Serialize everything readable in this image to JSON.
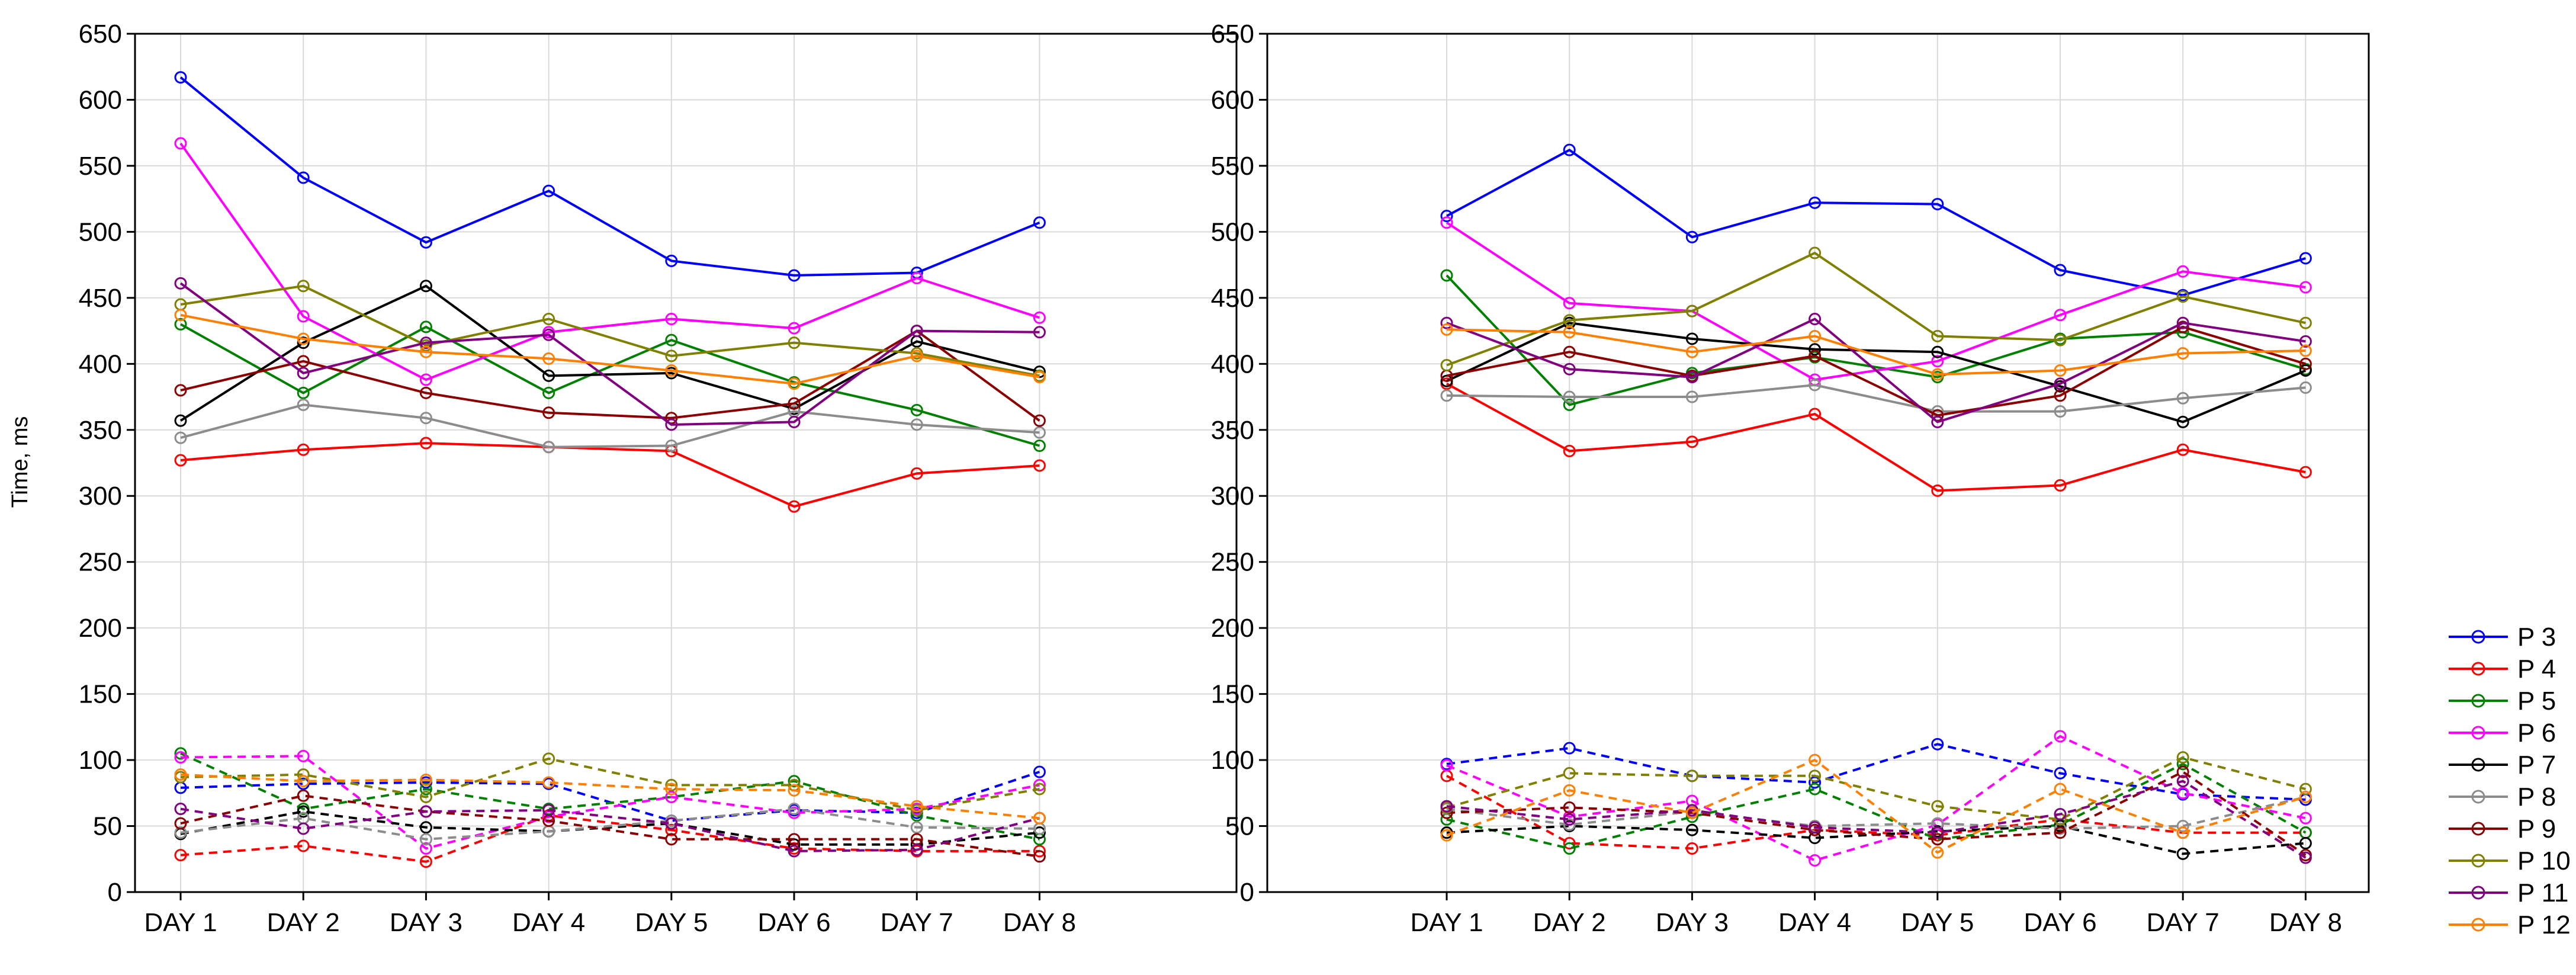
{
  "chart_data": [
    {
      "type": "line",
      "panel": "left",
      "title": "",
      "xlabel": "",
      "ylabel": "Time, ms",
      "ylim": [
        0,
        650
      ],
      "yticks": [
        0,
        50,
        100,
        150,
        200,
        250,
        300,
        350,
        400,
        450,
        500,
        550,
        600,
        650
      ],
      "categories": [
        "DAY 1",
        "DAY 2",
        "DAY 3",
        "DAY 4",
        "DAY 5",
        "DAY 6",
        "DAY 7",
        "DAY 8"
      ],
      "grid": true,
      "series": [
        {
          "name": "P 3",
          "style": "solid",
          "color": "#0000ff",
          "values": [
            617,
            541,
            492,
            531,
            478,
            467,
            469,
            507
          ]
        },
        {
          "name": "P 4",
          "style": "solid",
          "color": "#ff0000",
          "values": [
            327,
            335,
            340,
            337,
            334,
            292,
            317,
            323
          ]
        },
        {
          "name": "P 5",
          "style": "solid",
          "color": "#008000",
          "values": [
            430,
            378,
            428,
            378,
            418,
            386,
            365,
            338
          ]
        },
        {
          "name": "P 6",
          "style": "solid",
          "color": "#ff00ff",
          "values": [
            567,
            436,
            388,
            424,
            434,
            427,
            465,
            435
          ]
        },
        {
          "name": "P 7",
          "style": "solid",
          "color": "#000000",
          "values": [
            357,
            416,
            459,
            391,
            393,
            366,
            417,
            394
          ]
        },
        {
          "name": "P 8",
          "style": "solid",
          "color": "#8c8c8c",
          "values": [
            344,
            369,
            359,
            337,
            338,
            364,
            354,
            348
          ]
        },
        {
          "name": "P 9",
          "style": "solid",
          "color": "#8b0000",
          "values": [
            380,
            402,
            378,
            363,
            359,
            370,
            425,
            357
          ]
        },
        {
          "name": "P 10",
          "style": "solid",
          "color": "#808000",
          "values": [
            445,
            459,
            414,
            434,
            406,
            416,
            408,
            391
          ]
        },
        {
          "name": "P 11",
          "style": "solid",
          "color": "#800080",
          "values": [
            461,
            393,
            416,
            422,
            354,
            356,
            425,
            424
          ]
        },
        {
          "name": "P 12",
          "style": "solid",
          "color": "#ff7f00",
          "values": [
            437,
            419,
            409,
            404,
            395,
            385,
            406,
            390
          ]
        },
        {
          "name": "P 3",
          "style": "dashed",
          "color": "#0000ff",
          "values": [
            79,
            82,
            83,
            82,
            54,
            62,
            60,
            91
          ]
        },
        {
          "name": "P 4",
          "style": "dashed",
          "color": "#ff0000",
          "values": [
            28,
            35,
            23,
            58,
            47,
            33,
            31,
            31
          ]
        },
        {
          "name": "P 5",
          "style": "dashed",
          "color": "#008000",
          "values": [
            105,
            63,
            78,
            63,
            72,
            84,
            58,
            40
          ]
        },
        {
          "name": "P 6",
          "style": "dashed",
          "color": "#ff00ff",
          "values": [
            102,
            103,
            33,
            57,
            72,
            60,
            63,
            81
          ]
        },
        {
          "name": "P 7",
          "style": "dashed",
          "color": "#000000",
          "values": [
            44,
            61,
            49,
            46,
            52,
            36,
            36,
            45
          ]
        },
        {
          "name": "P 8",
          "style": "dashed",
          "color": "#8c8c8c",
          "values": [
            45,
            56,
            40,
            46,
            54,
            63,
            49,
            48
          ]
        },
        {
          "name": "P 9",
          "style": "dashed",
          "color": "#8b0000",
          "values": [
            52,
            73,
            61,
            54,
            40,
            40,
            40,
            27
          ]
        },
        {
          "name": "P 10",
          "style": "dashed",
          "color": "#808000",
          "values": [
            87,
            89,
            72,
            101,
            81,
            81,
            62,
            78
          ]
        },
        {
          "name": "P 11",
          "style": "dashed",
          "color": "#800080",
          "values": [
            63,
            48,
            61,
            62,
            52,
            31,
            32,
            56
          ]
        },
        {
          "name": "P 12",
          "style": "dashed",
          "color": "#ff7f00",
          "values": [
            89,
            84,
            85,
            83,
            78,
            77,
            65,
            56
          ]
        }
      ]
    },
    {
      "type": "line",
      "panel": "right",
      "title": "",
      "xlabel": "",
      "ylabel": "",
      "ylim": [
        0,
        650
      ],
      "yticks": [
        0,
        50,
        100,
        150,
        200,
        250,
        300,
        350,
        400,
        450,
        500,
        550,
        600,
        650
      ],
      "categories": [
        "DAY 1",
        "DAY 2",
        "DAY 3",
        "DAY 4",
        "DAY 5",
        "DAY 6",
        "DAY 7",
        "DAY 8"
      ],
      "grid": true,
      "series": [
        {
          "name": "P 3",
          "style": "solid",
          "color": "#0000ff",
          "values": [
            512,
            562,
            496,
            522,
            521,
            471,
            452,
            480
          ]
        },
        {
          "name": "P 4",
          "style": "solid",
          "color": "#ff0000",
          "values": [
            385,
            334,
            341,
            362,
            304,
            308,
            335,
            318
          ]
        },
        {
          "name": "P 5",
          "style": "solid",
          "color": "#008000",
          "values": [
            467,
            369,
            393,
            405,
            390,
            419,
            424,
            396
          ]
        },
        {
          "name": "P 6",
          "style": "solid",
          "color": "#ff00ff",
          "values": [
            507,
            446,
            440,
            388,
            402,
            437,
            470,
            458
          ]
        },
        {
          "name": "P 7",
          "style": "solid",
          "color": "#000000",
          "values": [
            387,
            431,
            419,
            411,
            409,
            383,
            356,
            395
          ]
        },
        {
          "name": "P 8",
          "style": "solid",
          "color": "#8c8c8c",
          "values": [
            376,
            375,
            375,
            384,
            364,
            364,
            374,
            382
          ]
        },
        {
          "name": "P 9",
          "style": "solid",
          "color": "#8b0000",
          "values": [
            391,
            409,
            391,
            406,
            361,
            376,
            428,
            400
          ]
        },
        {
          "name": "P 10",
          "style": "solid",
          "color": "#808000",
          "values": [
            399,
            433,
            440,
            484,
            421,
            418,
            451,
            431
          ]
        },
        {
          "name": "P 11",
          "style": "solid",
          "color": "#800080",
          "values": [
            431,
            396,
            390,
            434,
            356,
            385,
            431,
            417
          ]
        },
        {
          "name": "P 12",
          "style": "solid",
          "color": "#ff7f00",
          "values": [
            426,
            424,
            409,
            421,
            392,
            395,
            408,
            410
          ]
        },
        {
          "name": "P 3",
          "style": "dashed",
          "color": "#0000ff",
          "values": [
            97,
            109,
            88,
            83,
            112,
            90,
            74,
            70
          ]
        },
        {
          "name": "P 4",
          "style": "dashed",
          "color": "#ff0000",
          "values": [
            88,
            37,
            33,
            47,
            43,
            55,
            45,
            45
          ]
        },
        {
          "name": "P 5",
          "style": "dashed",
          "color": "#008000",
          "values": [
            55,
            33,
            57,
            78,
            40,
            51,
            97,
            45
          ]
        },
        {
          "name": "P 6",
          "style": "dashed",
          "color": "#ff00ff",
          "values": [
            96,
            57,
            69,
            24,
            51,
            118,
            75,
            56
          ]
        },
        {
          "name": "P 7",
          "style": "dashed",
          "color": "#000000",
          "values": [
            45,
            50,
            47,
            41,
            46,
            50,
            29,
            37
          ]
        },
        {
          "name": "P 8",
          "style": "dashed",
          "color": "#8c8c8c",
          "values": [
            63,
            51,
            61,
            50,
            52,
            48,
            50,
            72
          ]
        },
        {
          "name": "P 9",
          "style": "dashed",
          "color": "#8b0000",
          "values": [
            60,
            64,
            60,
            47,
            40,
            45,
            91,
            28
          ]
        },
        {
          "name": "P 10",
          "style": "dashed",
          "color": "#808000",
          "values": [
            64,
            90,
            88,
            88,
            65,
            55,
            102,
            78
          ]
        },
        {
          "name": "P 11",
          "style": "dashed",
          "color": "#800080",
          "values": [
            65,
            55,
            62,
            49,
            45,
            59,
            84,
            26
          ]
        },
        {
          "name": "P 12",
          "style": "dashed",
          "color": "#ff7f00",
          "values": [
            43,
            77,
            60,
            100,
            30,
            78,
            45,
            72
          ]
        }
      ]
    }
  ],
  "legend": {
    "placement": "right",
    "entries": [
      {
        "label": "P 3",
        "color": "#0000ff"
      },
      {
        "label": "P 4",
        "color": "#ff0000"
      },
      {
        "label": "P 5",
        "color": "#008000"
      },
      {
        "label": "P 6",
        "color": "#ff00ff"
      },
      {
        "label": "P 7",
        "color": "#000000"
      },
      {
        "label": "P 8",
        "color": "#8c8c8c"
      },
      {
        "label": "P 9",
        "color": "#8b0000"
      },
      {
        "label": "P 10",
        "color": "#808000"
      },
      {
        "label": "P 11",
        "color": "#800080"
      },
      {
        "label": "P 12",
        "color": "#ff7f00"
      }
    ]
  }
}
